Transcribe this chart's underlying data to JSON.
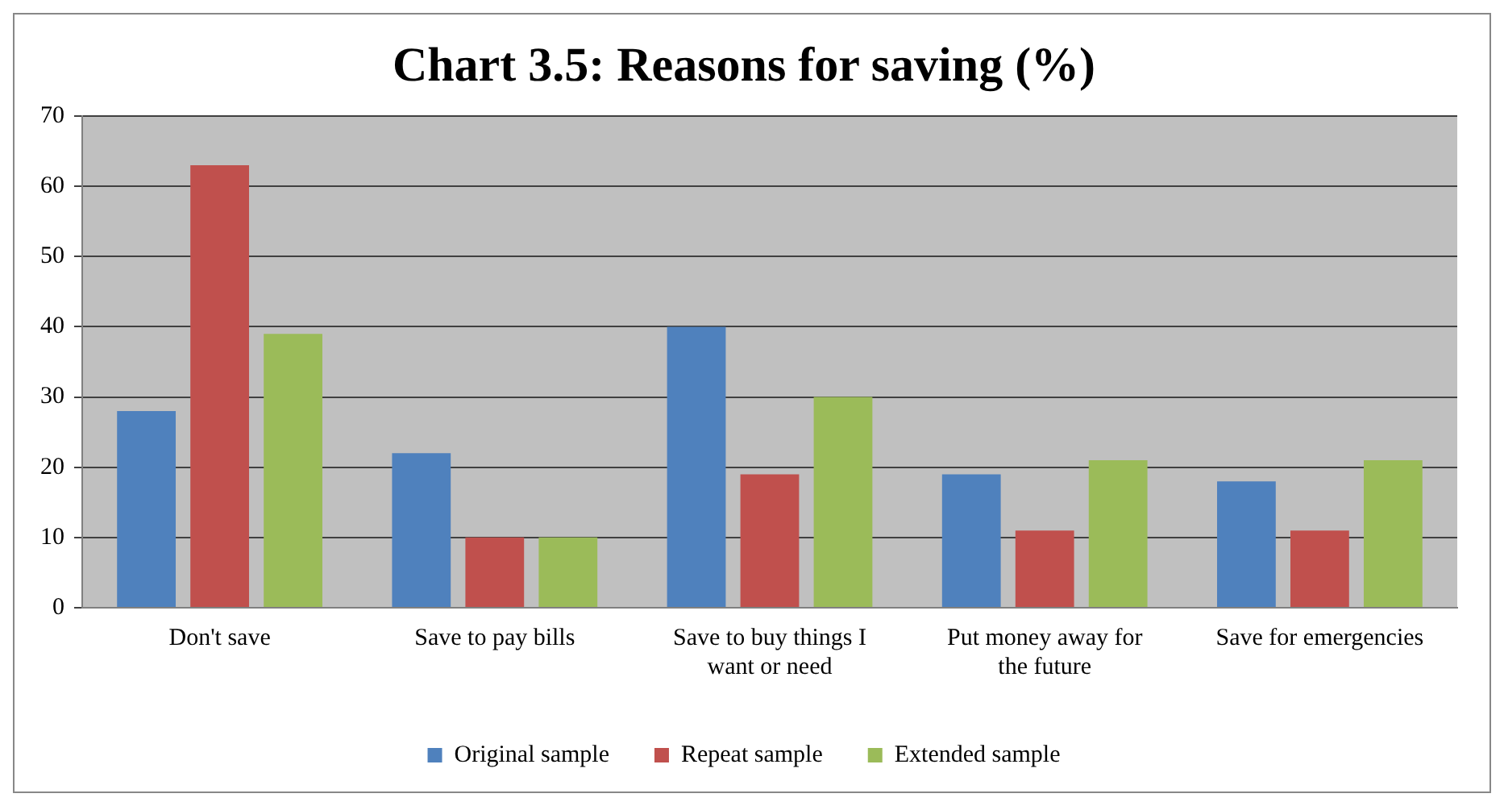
{
  "chart_data": {
    "type": "bar",
    "title": "Chart 3.5: Reasons for saving (%)",
    "categories": [
      "Don't save",
      "Save to pay bills",
      "Save to buy things I want or need",
      "Put money away for the future",
      "Save for emergencies"
    ],
    "series": [
      {
        "name": "Original sample",
        "color": "#4f81bd",
        "values": [
          28,
          22,
          40,
          19,
          18
        ]
      },
      {
        "name": "Repeat sample",
        "color": "#c0504d",
        "values": [
          63,
          10,
          19,
          11,
          11
        ]
      },
      {
        "name": "Extended sample",
        "color": "#9bbb59",
        "values": [
          39,
          10,
          30,
          21,
          21
        ]
      }
    ],
    "ylim": [
      0,
      70
    ],
    "yticks": [
      0,
      10,
      20,
      30,
      40,
      50,
      60,
      70
    ],
    "grid": "y",
    "legend": "bottom"
  }
}
